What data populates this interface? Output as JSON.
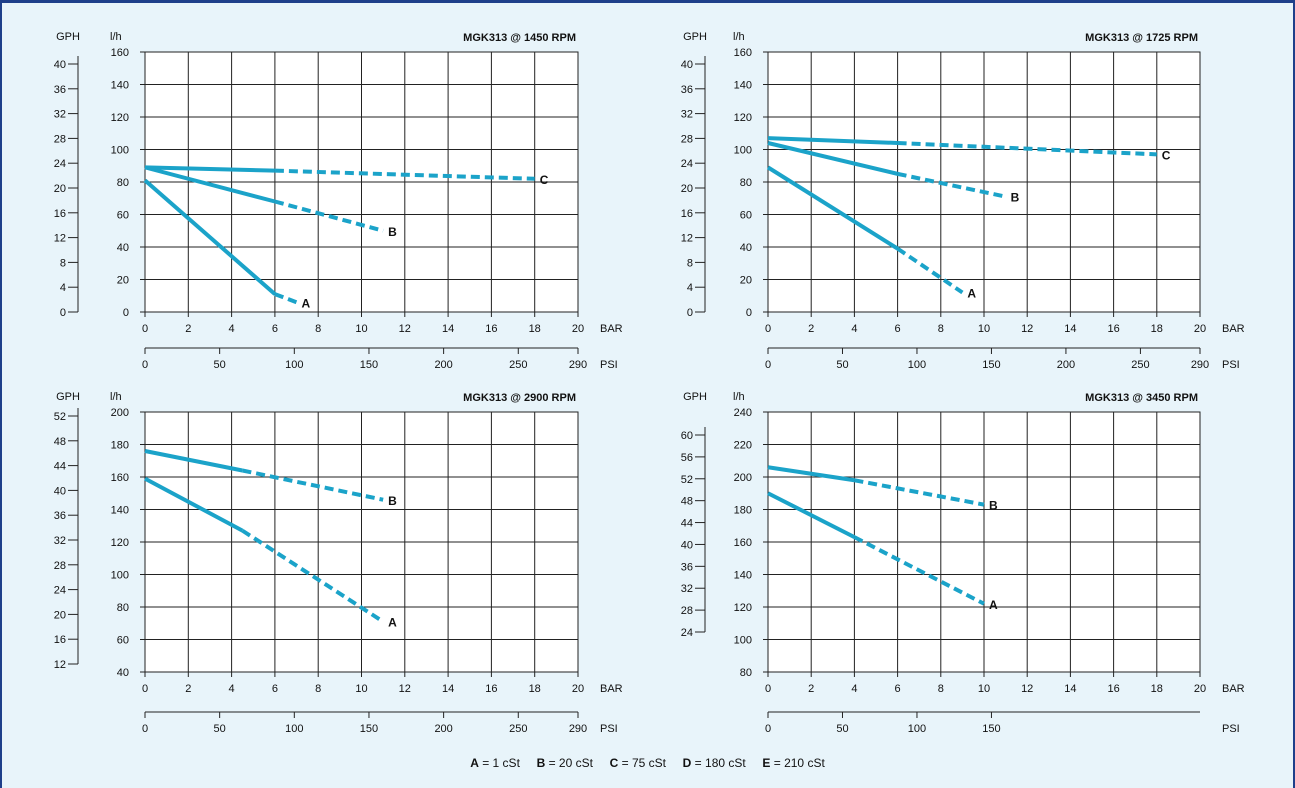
{
  "colors": {
    "frame": "#1e3f8a",
    "background": "#e8f4fa",
    "curve": "#1ba3c9",
    "grid": "#222222"
  },
  "legend": [
    {
      "key": "A",
      "text": " = 1 cSt"
    },
    {
      "key": "B",
      "text": " = 20 cSt"
    },
    {
      "key": "C",
      "text": " = 75 cSt"
    },
    {
      "key": "D",
      "text": " = 180 cSt"
    },
    {
      "key": "E",
      "text": " = 210 cSt"
    }
  ],
  "chart_data": [
    {
      "type": "line",
      "title": "MGK313 @ 1450 RPM",
      "ylabel_lh": "l/h",
      "ylabel_gph": "GPH",
      "xlabel_bar": "BAR",
      "xlabel_psi": "PSI",
      "xlim": [
        0,
        20
      ],
      "ylim": [
        0,
        160
      ],
      "x_ticks": [
        0,
        2,
        4,
        6,
        8,
        10,
        12,
        14,
        16,
        18,
        20
      ],
      "y_ticks": [
        0,
        20,
        40,
        60,
        80,
        100,
        120,
        140,
        160
      ],
      "gph_ticks": [
        0,
        4,
        8,
        12,
        16,
        20,
        24,
        28,
        32,
        36,
        40
      ],
      "psi_ticks": [
        0,
        50,
        100,
        150,
        200,
        250,
        290
      ],
      "series": [
        {
          "name": "A",
          "solid": [
            [
              0,
              81
            ],
            [
              6,
              11
            ]
          ],
          "dashed": [
            [
              6,
              11
            ],
            [
              7,
              6
            ]
          ]
        },
        {
          "name": "B",
          "solid": [
            [
              0,
              89
            ],
            [
              6,
              68
            ]
          ],
          "dashed": [
            [
              6,
              68
            ],
            [
              11,
              50
            ]
          ]
        },
        {
          "name": "C",
          "solid": [
            [
              0,
              89
            ],
            [
              6,
              87
            ]
          ],
          "dashed": [
            [
              6,
              87
            ],
            [
              18,
              82
            ]
          ]
        }
      ]
    },
    {
      "type": "line",
      "title": "MGK313 @ 1725 RPM",
      "ylabel_lh": "l/h",
      "ylabel_gph": "GPH",
      "xlabel_bar": "BAR",
      "xlabel_psi": "PSI",
      "xlim": [
        0,
        20
      ],
      "ylim": [
        0,
        160
      ],
      "x_ticks": [
        0,
        2,
        4,
        6,
        8,
        10,
        12,
        14,
        16,
        18,
        20
      ],
      "y_ticks": [
        0,
        20,
        40,
        60,
        80,
        100,
        120,
        140,
        160
      ],
      "gph_ticks": [
        0,
        4,
        8,
        12,
        16,
        20,
        24,
        28,
        32,
        36,
        40
      ],
      "psi_ticks": [
        0,
        50,
        100,
        150,
        200,
        250,
        290
      ],
      "series": [
        {
          "name": "A",
          "solid": [
            [
              0,
              89
            ],
            [
              6,
              39
            ]
          ],
          "dashed": [
            [
              6,
              39
            ],
            [
              9,
              12
            ]
          ]
        },
        {
          "name": "B",
          "solid": [
            [
              0,
              104
            ],
            [
              6,
              85
            ]
          ],
          "dashed": [
            [
              6,
              85
            ],
            [
              11,
              71
            ]
          ]
        },
        {
          "name": "C",
          "solid": [
            [
              0,
              107
            ],
            [
              6,
              104
            ]
          ],
          "dashed": [
            [
              6,
              104
            ],
            [
              18,
              97
            ]
          ]
        }
      ]
    },
    {
      "type": "line",
      "title": "MGK313 @ 2900 RPM",
      "ylabel_lh": "l/h",
      "ylabel_gph": "GPH",
      "xlabel_bar": "BAR",
      "xlabel_psi": "PSI",
      "xlim": [
        0,
        20
      ],
      "ylim": [
        40,
        200
      ],
      "x_ticks": [
        0,
        2,
        4,
        6,
        8,
        10,
        12,
        14,
        16,
        18,
        20
      ],
      "y_ticks": [
        40,
        60,
        80,
        100,
        120,
        140,
        160,
        180,
        200
      ],
      "gph_ticks": [
        12,
        16,
        20,
        24,
        28,
        32,
        36,
        40,
        44,
        48,
        52
      ],
      "psi_ticks": [
        0,
        50,
        100,
        150,
        200,
        250,
        290
      ],
      "series": [
        {
          "name": "A",
          "solid": [
            [
              0,
              159
            ],
            [
              4.5,
              127
            ]
          ],
          "dashed": [
            [
              4.5,
              127
            ],
            [
              11,
              71
            ]
          ]
        },
        {
          "name": "B",
          "solid": [
            [
              0,
              176
            ],
            [
              4.5,
              164
            ]
          ],
          "dashed": [
            [
              4.5,
              164
            ],
            [
              11,
              146
            ]
          ]
        }
      ]
    },
    {
      "type": "line",
      "title": "MGK313 @ 3450 RPM",
      "ylabel_lh": "l/h",
      "ylabel_gph": "GPH",
      "xlabel_bar": "BAR",
      "xlabel_psi": "PSI",
      "xlim": [
        0,
        20
      ],
      "ylim": [
        80,
        240
      ],
      "x_ticks": [
        0,
        2,
        4,
        6,
        8,
        10,
        12,
        14,
        16,
        18,
        20
      ],
      "y_ticks": [
        80,
        100,
        120,
        140,
        160,
        180,
        200,
        220,
        240
      ],
      "gph_ticks": [
        24,
        28,
        32,
        36,
        40,
        44,
        48,
        52,
        56,
        60
      ],
      "psi_ticks": [
        0,
        50,
        100,
        150
      ],
      "series": [
        {
          "name": "A",
          "solid": [
            [
              0,
              190
            ],
            [
              4,
              163
            ]
          ],
          "dashed": [
            [
              4,
              163
            ],
            [
              10,
              122
            ]
          ]
        },
        {
          "name": "B",
          "solid": [
            [
              0,
              206
            ],
            [
              4,
              198
            ]
          ],
          "dashed": [
            [
              4,
              198
            ],
            [
              10,
              183
            ]
          ]
        }
      ]
    }
  ]
}
